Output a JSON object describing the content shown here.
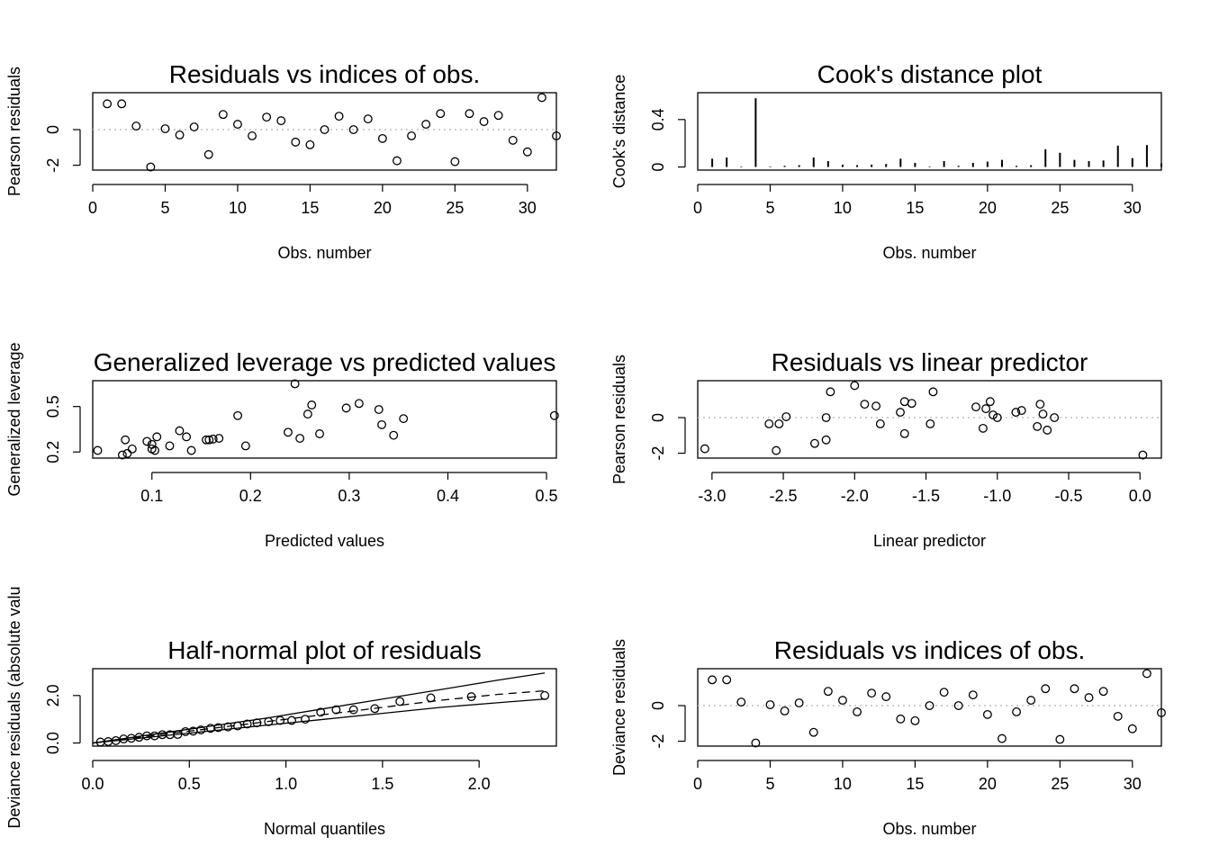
{
  "colors": {
    "ink": "#000000",
    "refline": "#bebebe"
  },
  "chart_data": [
    {
      "type": "scatter",
      "title": "Residuals vs indices of obs.",
      "xlabel": "Obs. number",
      "ylabel": "Pearson residuals",
      "xlim": [
        0,
        32
      ],
      "ylim": [
        -2.1,
        1.9
      ],
      "xticks": [
        0,
        5,
        10,
        15,
        20,
        25,
        30
      ],
      "yticks": [
        -2,
        0
      ],
      "hline": 0,
      "x": [
        1,
        2,
        3,
        4,
        5,
        6,
        7,
        8,
        9,
        10,
        11,
        12,
        13,
        14,
        15,
        16,
        17,
        18,
        19,
        20,
        21,
        22,
        23,
        24,
        25,
        26,
        27,
        28,
        29,
        30,
        31,
        32
      ],
      "y": [
        1.45,
        1.45,
        0.2,
        -2.1,
        0.05,
        -0.3,
        0.15,
        -1.4,
        0.85,
        0.3,
        -0.35,
        0.7,
        0.5,
        -0.7,
        -0.85,
        0.0,
        0.75,
        0.0,
        0.6,
        -0.5,
        -1.75,
        -0.35,
        0.3,
        0.9,
        -1.8,
        0.9,
        0.45,
        0.8,
        -0.6,
        -1.25,
        1.8,
        -0.35
      ]
    },
    {
      "type": "bar",
      "title": "Cook's distance plot",
      "xlabel": "Obs. number",
      "ylabel": "Cook's distance",
      "xlim": [
        0,
        32
      ],
      "ylim": [
        0,
        0.6
      ],
      "xticks": [
        0,
        5,
        10,
        15,
        20,
        25,
        30
      ],
      "yticks": [
        0.0,
        0.4
      ],
      "x": [
        1,
        2,
        3,
        4,
        5,
        6,
        7,
        8,
        9,
        10,
        11,
        12,
        13,
        14,
        15,
        16,
        17,
        18,
        19,
        20,
        21,
        22,
        23,
        24,
        25,
        26,
        27,
        28,
        29,
        30,
        31,
        32
      ],
      "values": [
        0.07,
        0.08,
        0.005,
        0.58,
        0.005,
        0.01,
        0.015,
        0.08,
        0.05,
        0.02,
        0.015,
        0.02,
        0.025,
        0.07,
        0.035,
        0.005,
        0.05,
        0.01,
        0.035,
        0.045,
        0.06,
        0.01,
        0.015,
        0.15,
        0.12,
        0.06,
        0.05,
        0.055,
        0.18,
        0.075,
        0.185,
        0.03
      ]
    },
    {
      "type": "scatter",
      "title": "Generalized leverage vs predicted values",
      "xlabel": "Predicted values",
      "ylabel": "Generalized leverage",
      "xlim": [
        0.04,
        0.51
      ],
      "ylim": [
        0.18,
        0.65
      ],
      "xticks": [
        0.1,
        0.2,
        0.3,
        0.4,
        0.5
      ],
      "yticks": [
        0.2,
        0.5
      ],
      "x": [
        0.045,
        0.07,
        0.073,
        0.075,
        0.08,
        0.095,
        0.1,
        0.1,
        0.103,
        0.105,
        0.118,
        0.128,
        0.135,
        0.14,
        0.155,
        0.158,
        0.162,
        0.168,
        0.187,
        0.195,
        0.238,
        0.245,
        0.25,
        0.258,
        0.262,
        0.27,
        0.297,
        0.31,
        0.33,
        0.333,
        0.345,
        0.355,
        0.508
      ],
      "y": [
        0.21,
        0.18,
        0.28,
        0.19,
        0.22,
        0.27,
        0.25,
        0.22,
        0.21,
        0.3,
        0.24,
        0.34,
        0.3,
        0.21,
        0.28,
        0.28,
        0.285,
        0.29,
        0.44,
        0.24,
        0.33,
        0.65,
        0.29,
        0.45,
        0.51,
        0.32,
        0.49,
        0.52,
        0.48,
        0.38,
        0.31,
        0.42,
        0.44
      ]
    },
    {
      "type": "scatter",
      "title": "Residuals vs linear predictor",
      "xlabel": "Linear predictor",
      "ylabel": "Pearson residuals",
      "xlim": [
        -3.1,
        0.15
      ],
      "ylim": [
        -2.1,
        1.9
      ],
      "xticks": [
        -3.0,
        -2.5,
        -2.0,
        -1.5,
        -1.0,
        -0.5,
        0.0
      ],
      "xtick_labels": [
        "-3.0",
        "-2.5",
        "-2.0",
        "-1.5",
        "-1.0",
        "-0.5",
        "0.0"
      ],
      "yticks": [
        -2,
        0
      ],
      "hline": 0,
      "x": [
        -3.05,
        -2.6,
        -2.55,
        -2.53,
        -2.48,
        -2.28,
        -2.2,
        -2.2,
        -2.17,
        -2.0,
        -1.93,
        -1.85,
        -1.82,
        -1.68,
        -1.65,
        -1.65,
        -1.6,
        -1.47,
        -1.45,
        -1.15,
        -1.1,
        -1.08,
        -1.05,
        -1.03,
        -1.0,
        -0.87,
        -0.83,
        -0.72,
        -0.7,
        -0.68,
        -0.65,
        -0.6,
        0.02
      ],
      "y": [
        -1.75,
        -0.35,
        -1.85,
        -0.35,
        0.05,
        -1.45,
        -1.25,
        0.0,
        1.45,
        1.8,
        0.75,
        0.65,
        -0.35,
        0.3,
        -0.9,
        0.9,
        0.8,
        -0.35,
        1.45,
        0.6,
        -0.6,
        0.5,
        0.9,
        0.15,
        0.0,
        0.3,
        0.4,
        -0.5,
        0.75,
        0.2,
        -0.7,
        0.0,
        -2.1
      ]
    },
    {
      "type": "scatter",
      "title": "Half-normal plot of residuals",
      "xlabel": "Normal quantiles",
      "ylabel": "Deviance residuals (absolute valu",
      "xlim": [
        0.0,
        2.4
      ],
      "ylim": [
        0.0,
        3.0
      ],
      "xticks": [
        0.0,
        0.5,
        1.0,
        1.5,
        2.0
      ],
      "xtick_labels": [
        "0.0",
        "0.5",
        "1.0",
        "1.5",
        "2.0"
      ],
      "yticks": [
        0.0,
        2.0
      ],
      "ytick_labels": [
        "0.0",
        "2.0"
      ],
      "x": [
        0.04,
        0.08,
        0.12,
        0.16,
        0.2,
        0.24,
        0.28,
        0.32,
        0.36,
        0.4,
        0.44,
        0.48,
        0.52,
        0.56,
        0.61,
        0.65,
        0.7,
        0.75,
        0.8,
        0.85,
        0.91,
        0.97,
        1.03,
        1.1,
        1.18,
        1.26,
        1.35,
        1.46,
        1.59,
        1.75,
        1.96,
        2.34
      ],
      "y": [
        0.04,
        0.06,
        0.1,
        0.17,
        0.2,
        0.24,
        0.3,
        0.3,
        0.35,
        0.35,
        0.36,
        0.48,
        0.5,
        0.55,
        0.62,
        0.65,
        0.68,
        0.72,
        0.8,
        0.85,
        0.9,
        0.95,
        0.95,
        1.0,
        1.3,
        1.4,
        1.4,
        1.45,
        1.75,
        1.9,
        1.95,
        2.0
      ],
      "series": [
        {
          "type": "line",
          "style": "solid",
          "x": [
            0.0,
            0.3,
            0.6,
            0.9,
            1.2,
            1.5,
            1.8,
            2.1,
            2.34
          ],
          "y": [
            0.0,
            0.35,
            0.7,
            1.05,
            1.45,
            1.85,
            2.25,
            2.65,
            2.95
          ]
        },
        {
          "type": "line",
          "style": "solid",
          "x": [
            0.0,
            0.3,
            0.6,
            0.9,
            1.2,
            1.5,
            1.8,
            2.1,
            2.34
          ],
          "y": [
            0.0,
            0.25,
            0.5,
            0.75,
            1.0,
            1.25,
            1.5,
            1.7,
            1.85
          ]
        },
        {
          "type": "line",
          "style": "dashed",
          "x": [
            0.0,
            0.3,
            0.6,
            0.9,
            1.2,
            1.5,
            1.8,
            2.1,
            2.34
          ],
          "y": [
            0.0,
            0.3,
            0.6,
            0.9,
            1.2,
            1.5,
            1.8,
            2.05,
            2.2
          ]
        }
      ]
    },
    {
      "type": "scatter",
      "title": "Residuals vs indices of obs.",
      "xlabel": "Obs. number",
      "ylabel": "Deviance residuals",
      "xlim": [
        0,
        32
      ],
      "ylim": [
        -2.1,
        1.9
      ],
      "xticks": [
        0,
        5,
        10,
        15,
        20,
        25,
        30
      ],
      "yticks": [
        -2,
        0
      ],
      "hline": 0,
      "x": [
        1,
        2,
        3,
        4,
        5,
        6,
        7,
        8,
        9,
        10,
        11,
        12,
        13,
        14,
        15,
        16,
        17,
        18,
        19,
        20,
        21,
        22,
        23,
        24,
        25,
        26,
        27,
        28,
        29,
        30,
        31,
        32
      ],
      "y": [
        1.45,
        1.45,
        0.2,
        -2.1,
        0.05,
        -0.3,
        0.15,
        -1.5,
        0.8,
        0.3,
        -0.35,
        0.7,
        0.5,
        -0.75,
        -0.85,
        0.0,
        0.75,
        0.0,
        0.6,
        -0.5,
        -1.85,
        -0.35,
        0.3,
        0.95,
        -1.9,
        0.95,
        0.45,
        0.8,
        -0.6,
        -1.3,
        1.8,
        -0.4
      ]
    }
  ]
}
